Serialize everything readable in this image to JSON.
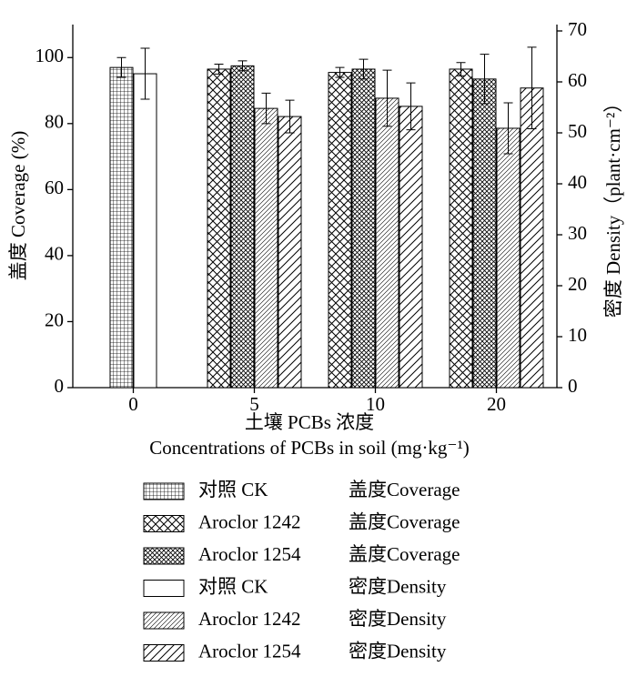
{
  "chart_data": {
    "type": "bar",
    "categories": [
      "0",
      "5",
      "10",
      "20"
    ],
    "x_label": "土壤 PCBs 浓度",
    "x_label_en": "Concentrations of PCBs in soil (mg·kg⁻¹)",
    "y_label": "盖度 Coverage (%)",
    "y2_label": "密度 Density（plant·cm⁻²）",
    "ylim": [
      0,
      110
    ],
    "yticks": [
      0,
      20,
      40,
      60,
      80,
      100
    ],
    "y2lim": [
      0,
      71.25
    ],
    "y2ticks": [
      0,
      10,
      20,
      30,
      40,
      50,
      60,
      70
    ],
    "series": [
      {
        "name": "对照 CK",
        "measure": "盖度Coverage",
        "color": "#000000",
        "pattern": "grid",
        "values": [
          97,
          null,
          null,
          null
        ],
        "errors": [
          3,
          null,
          null,
          null
        ]
      },
      {
        "name": "Aroclor 1242",
        "measure": "盖度Coverage",
        "color": "#000000",
        "pattern": "crosshatch",
        "values": [
          null,
          96.5,
          95.5,
          96.5
        ],
        "errors": [
          null,
          1.5,
          1.5,
          2
        ]
      },
      {
        "name": "Aroclor 1254",
        "measure": "盖度Coverage",
        "color": "#000000",
        "pattern": "crosshatch-fine",
        "values": [
          null,
          97.5,
          96.5,
          93.5
        ],
        "errors": [
          null,
          1.5,
          3,
          7.5
        ]
      },
      {
        "name": "对照 CK",
        "measure": "密度Density",
        "color": "#000000",
        "pattern": "none",
        "axis": "y2",
        "values": [
          61.6,
          null,
          null,
          null
        ],
        "errors": [
          5,
          null,
          null,
          null
        ]
      },
      {
        "name": "Aroclor 1242",
        "measure": "密度Density",
        "color": "#000000",
        "pattern": "hatch-fine",
        "axis": "y2",
        "values": [
          null,
          54.8,
          56.8,
          50.9
        ],
        "errors": [
          null,
          3,
          5.5,
          5
        ]
      },
      {
        "name": "Aroclor 1254",
        "measure": "密度Density",
        "color": "#000000",
        "pattern": "hatch-wide",
        "axis": "y2",
        "values": [
          null,
          53.2,
          55.2,
          58.8
        ],
        "errors": [
          null,
          3.2,
          4.6,
          8
        ]
      }
    ]
  }
}
